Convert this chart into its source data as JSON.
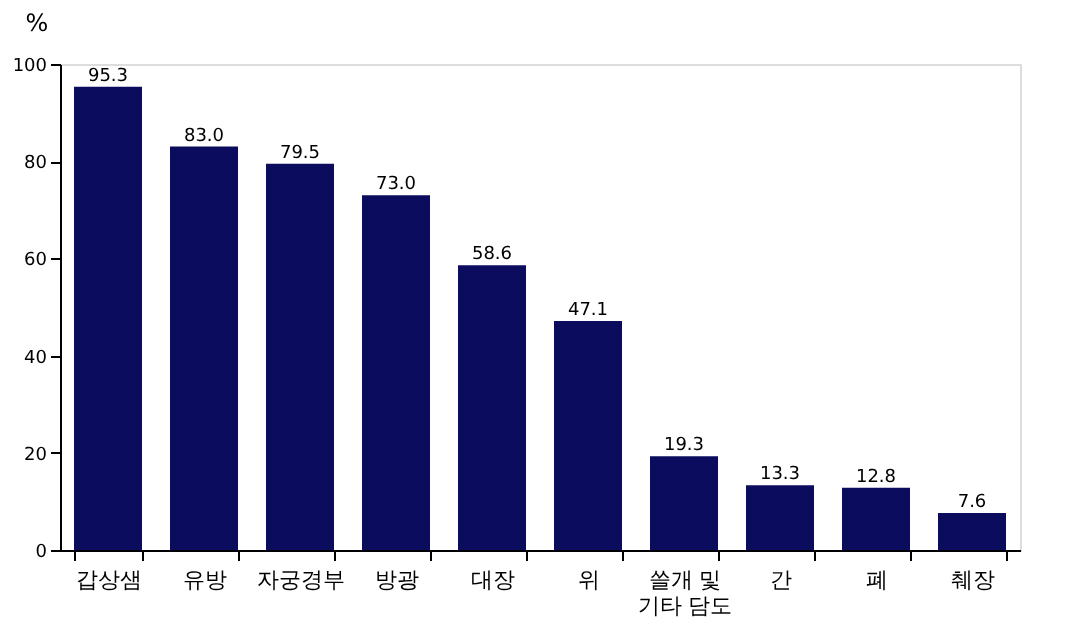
{
  "chart_data": {
    "type": "bar",
    "ylabel": "%",
    "categories": [
      "갑상샘",
      "유방",
      "자궁경부",
      "방광",
      "대장",
      "위",
      "쓸개 및 기타 담도",
      "간",
      "폐",
      "췌장"
    ],
    "values": [
      95.3,
      83.0,
      79.5,
      73.0,
      58.6,
      47.1,
      19.3,
      13.3,
      12.8,
      7.6
    ],
    "value_labels": [
      "95.3",
      "83.0",
      "79.5",
      "73.0",
      "58.6",
      "47.1",
      "19.3",
      "13.3",
      "12.8",
      "7.6"
    ],
    "color": "#0c0c5e",
    "ylim": [
      0,
      100
    ],
    "yticks": [
      0,
      20,
      40,
      60,
      80,
      100
    ],
    "grid": false
  }
}
